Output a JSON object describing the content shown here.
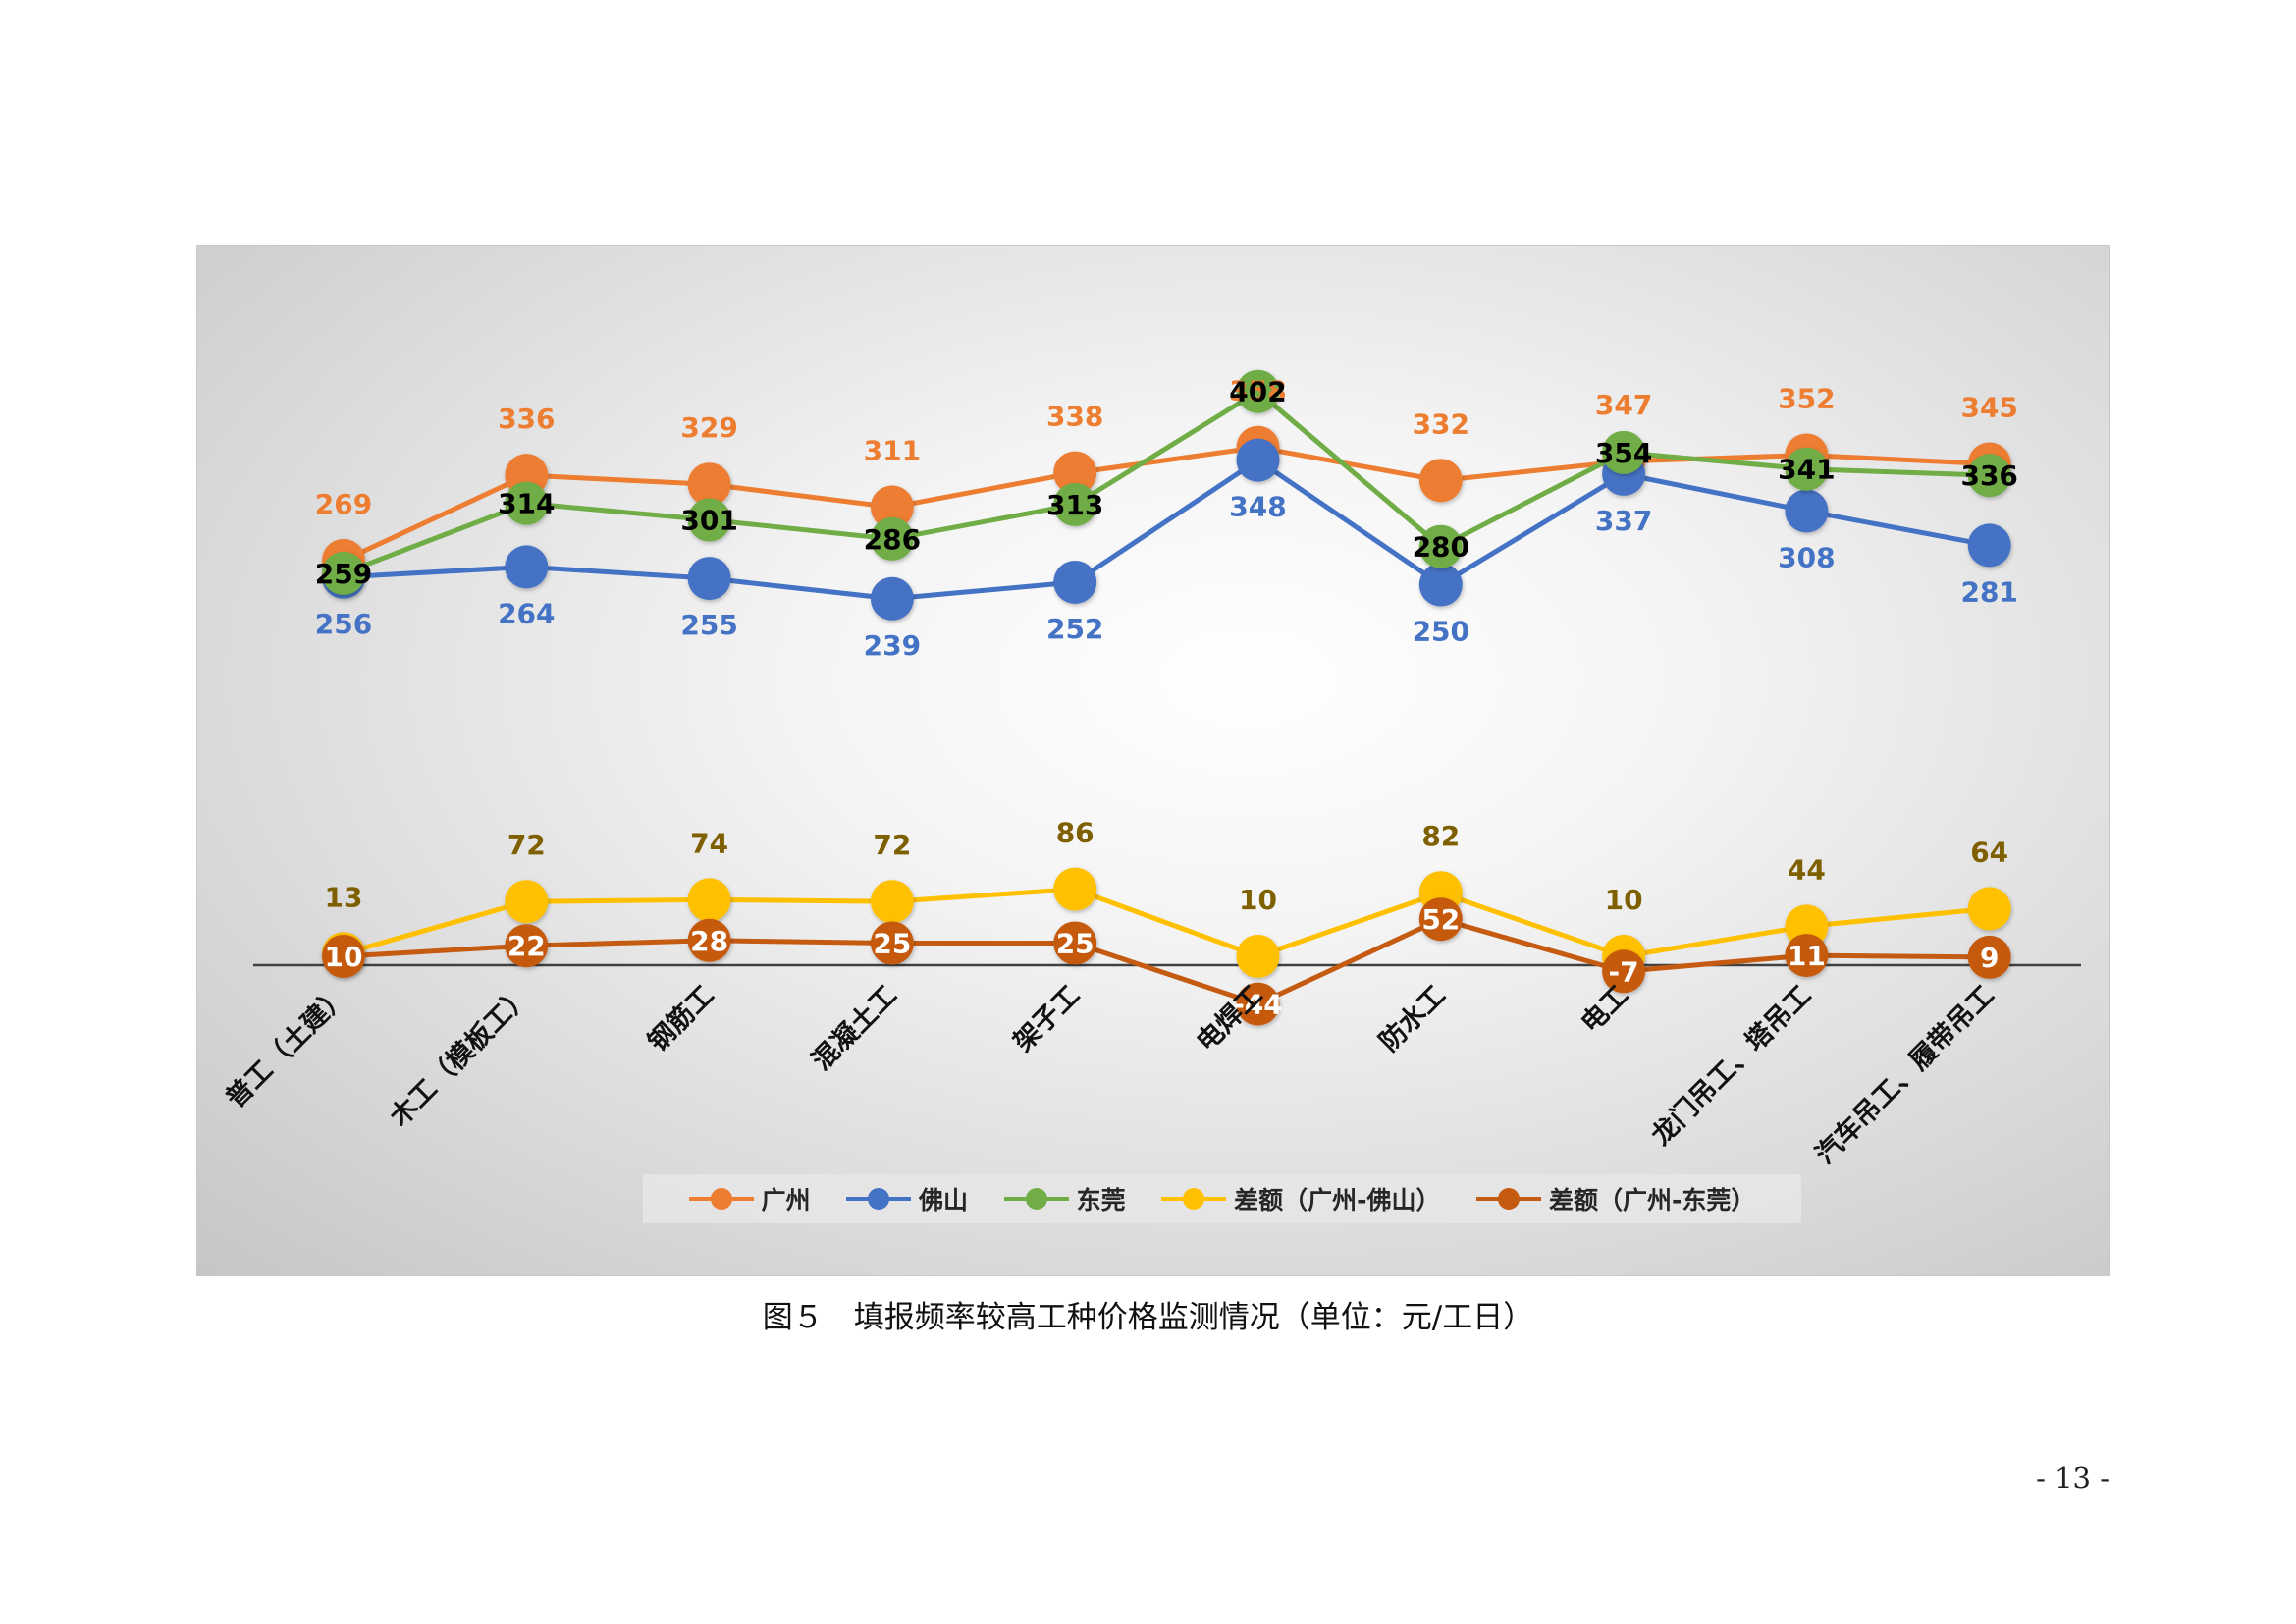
{
  "chart_data": {
    "type": "line",
    "categories": [
      "普工（土建）",
      "木工（模板工）",
      "钢筋工",
      "混凝土工",
      "架子工",
      "电焊工",
      "防水工",
      "电工",
      "龙门吊工、塔吊工",
      "汽车吊工、履带吊工"
    ],
    "series": [
      {
        "name": "广州",
        "color": "#ED7D31",
        "values": [
          269,
          336,
          329,
          311,
          338,
          358,
          332,
          347,
          352,
          345
        ]
      },
      {
        "name": "佛山",
        "color": "#4472C4",
        "values": [
          256,
          264,
          255,
          239,
          252,
          348,
          250,
          337,
          308,
          281
        ]
      },
      {
        "name": "东莞",
        "color": "#70AD47",
        "values": [
          259,
          314,
          301,
          286,
          313,
          402,
          280,
          354,
          341,
          336
        ]
      },
      {
        "name": "差额（广州-佛山）",
        "color": "#FFC000",
        "values": [
          13,
          72,
          74,
          72,
          86,
          10,
          82,
          10,
          44,
          64
        ]
      },
      {
        "name": "差额（广州-东莞）",
        "color": "#C55A11",
        "values": [
          10,
          22,
          28,
          25,
          25,
          -44,
          52,
          -7,
          11,
          9
        ]
      }
    ],
    "label_colors": {
      "广州": "#ED7D31",
      "佛山": "#4472C4",
      "东莞": "#000000",
      "差额（广州-佛山）": "#7F6000",
      "差额（广州-东莞）": "#FFFFFF"
    },
    "legend_position": "bottom",
    "grid": false
  },
  "caption": "图５　填报频率较高工种价格监测情况（单位：元/工日）",
  "page_number": "- 13 -"
}
